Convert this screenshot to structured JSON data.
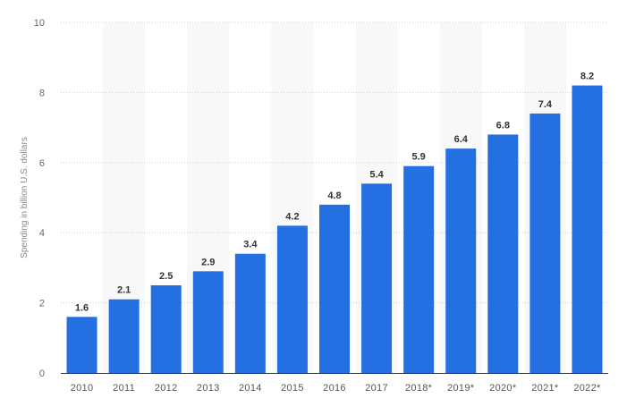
{
  "chart_data": {
    "type": "bar",
    "title": "",
    "xlabel": "",
    "ylabel": "Spending in billion U.S. dollars",
    "categories": [
      "2010",
      "2011",
      "2012",
      "2013",
      "2014",
      "2015",
      "2016",
      "2017",
      "2018*",
      "2019*",
      "2020*",
      "2021*",
      "2022*"
    ],
    "values": [
      1.6,
      2.1,
      2.5,
      2.9,
      3.4,
      4.2,
      4.8,
      5.4,
      5.9,
      6.4,
      6.8,
      7.4,
      8.2
    ],
    "value_labels": [
      "1.6",
      "2.1",
      "2.5",
      "2.9",
      "3.4",
      "4.2",
      "4.8",
      "5.4",
      "5.9",
      "6.4",
      "6.8",
      "7.4",
      "8.2"
    ],
    "ylim": [
      0,
      10
    ],
    "yticks": [
      0,
      2,
      4,
      6,
      8,
      10
    ],
    "grid": true,
    "legend": "none",
    "bar_color": "#2470e0",
    "band_color": "#f8f8f8"
  }
}
